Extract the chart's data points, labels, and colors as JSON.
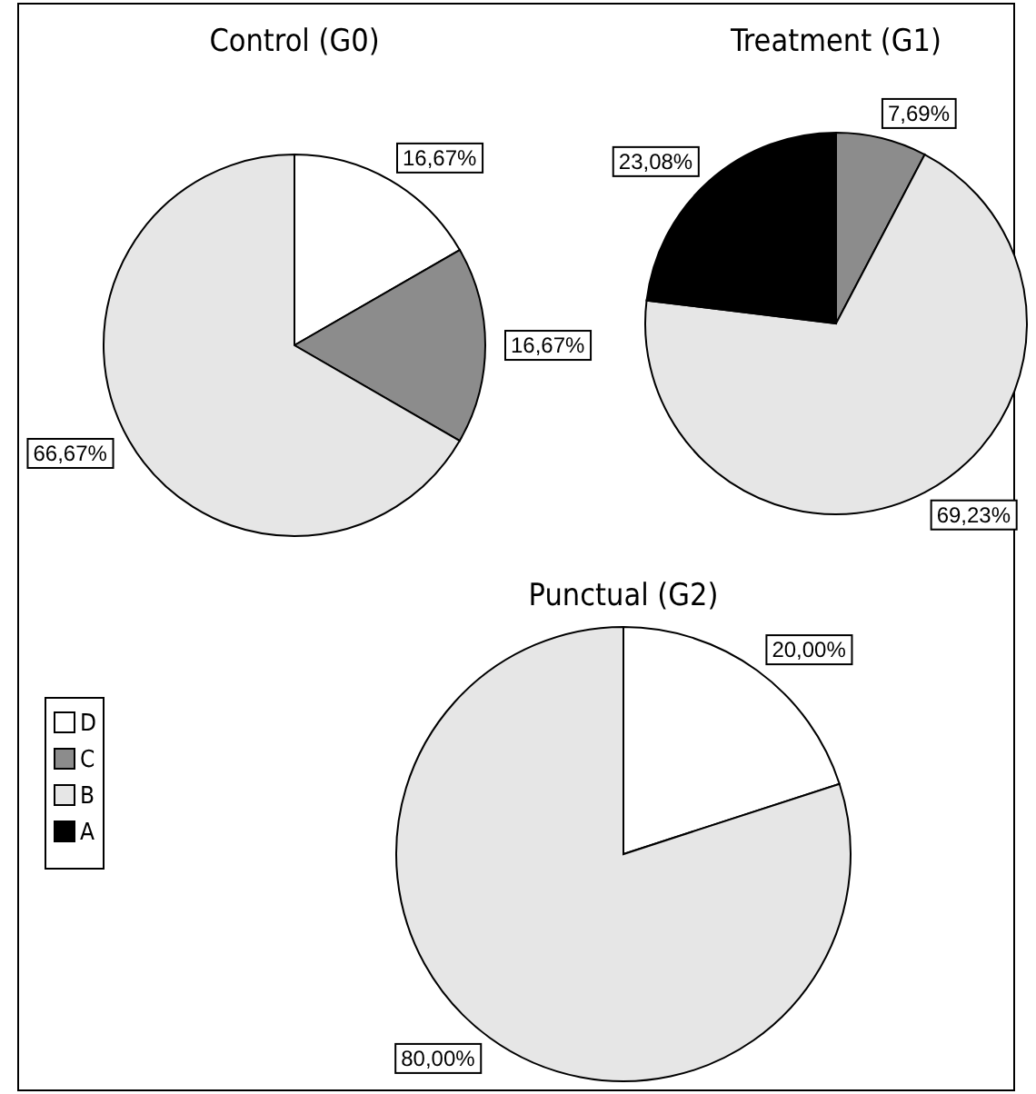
{
  "chart_data": [
    {
      "type": "pie",
      "title": "Control (G0)",
      "categories": [
        null,
        null,
        null
      ],
      "values": [
        16.67,
        16.67,
        66.67
      ],
      "value_labels": [
        "16,67%",
        "16,67%",
        "66,67%"
      ],
      "colors": [
        "#ffffff",
        "#8c8c8c",
        "#e6e6e6"
      ]
    },
    {
      "type": "pie",
      "title": "Treatment (G1)",
      "categories": [
        null,
        null,
        null
      ],
      "values": [
        7.69,
        69.23,
        23.08
      ],
      "value_labels": [
        "7,69%",
        "69,23%",
        "23,08%"
      ],
      "colors": [
        "#8c8c8c",
        "#e6e6e6",
        "#000000"
      ]
    },
    {
      "type": "pie",
      "title": "Punctual (G2)",
      "categories": [
        "D",
        "C",
        "B",
        "A"
      ],
      "values": [
        20,
        0,
        80,
        0
      ],
      "value_labels": [
        "20,00%",
        null,
        "80,00%",
        null
      ],
      "colors": [
        "#ffffff",
        "#8c8c8c",
        "#e6e6e6",
        "#000000"
      ],
      "legend": "left"
    }
  ]
}
